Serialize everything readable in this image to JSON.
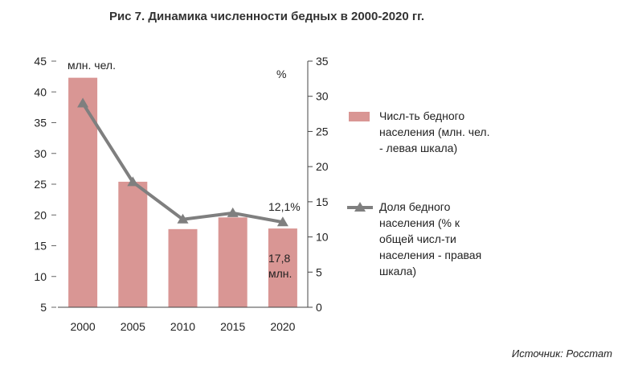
{
  "title": "Рис 7.  Динамика численности бедных в 2000-2020 гг.",
  "source": "Источник: Росстат",
  "chart_data": {
    "type": "bar+line",
    "categories": [
      "2000",
      "2005",
      "2010",
      "2015",
      "2020"
    ],
    "series": [
      {
        "name": "Числ-ть бедного населения (млн. чел. - левая шкала)",
        "legend_lines": [
          "Числ-ть бедного",
          "населения (млн. чел.",
          "- левая шкала)"
        ],
        "type": "bar",
        "axis": "left",
        "color": "#d99694",
        "values": [
          42.3,
          25.4,
          17.7,
          19.6,
          17.8
        ]
      },
      {
        "name": "Доля бедного населения (% к общей числ-ти населения - правая шкала)",
        "legend_lines": [
          "Доля бедного",
          "населения (% к",
          "общей числ-ти",
          "населения - правая",
          "шкала)"
        ],
        "type": "line",
        "axis": "right",
        "color": "#7f7f7f",
        "values": [
          29.0,
          17.8,
          12.5,
          13.4,
          12.1
        ]
      }
    ],
    "left_axis": {
      "unit": "млн. чел.",
      "min": 5,
      "max": 45,
      "ticks": [
        "5",
        "10",
        "15",
        "20",
        "25",
        "30",
        "35",
        "40",
        "45"
      ]
    },
    "right_axis": {
      "unit": "%",
      "min": 0,
      "max": 35,
      "ticks": [
        "0",
        "5",
        "10",
        "15",
        "20",
        "25",
        "30",
        "35"
      ]
    },
    "annotations": {
      "last_line_label": "12,1%",
      "last_bar_label": [
        "17,8",
        "млн."
      ]
    },
    "grid": false,
    "legend_position": "right"
  }
}
